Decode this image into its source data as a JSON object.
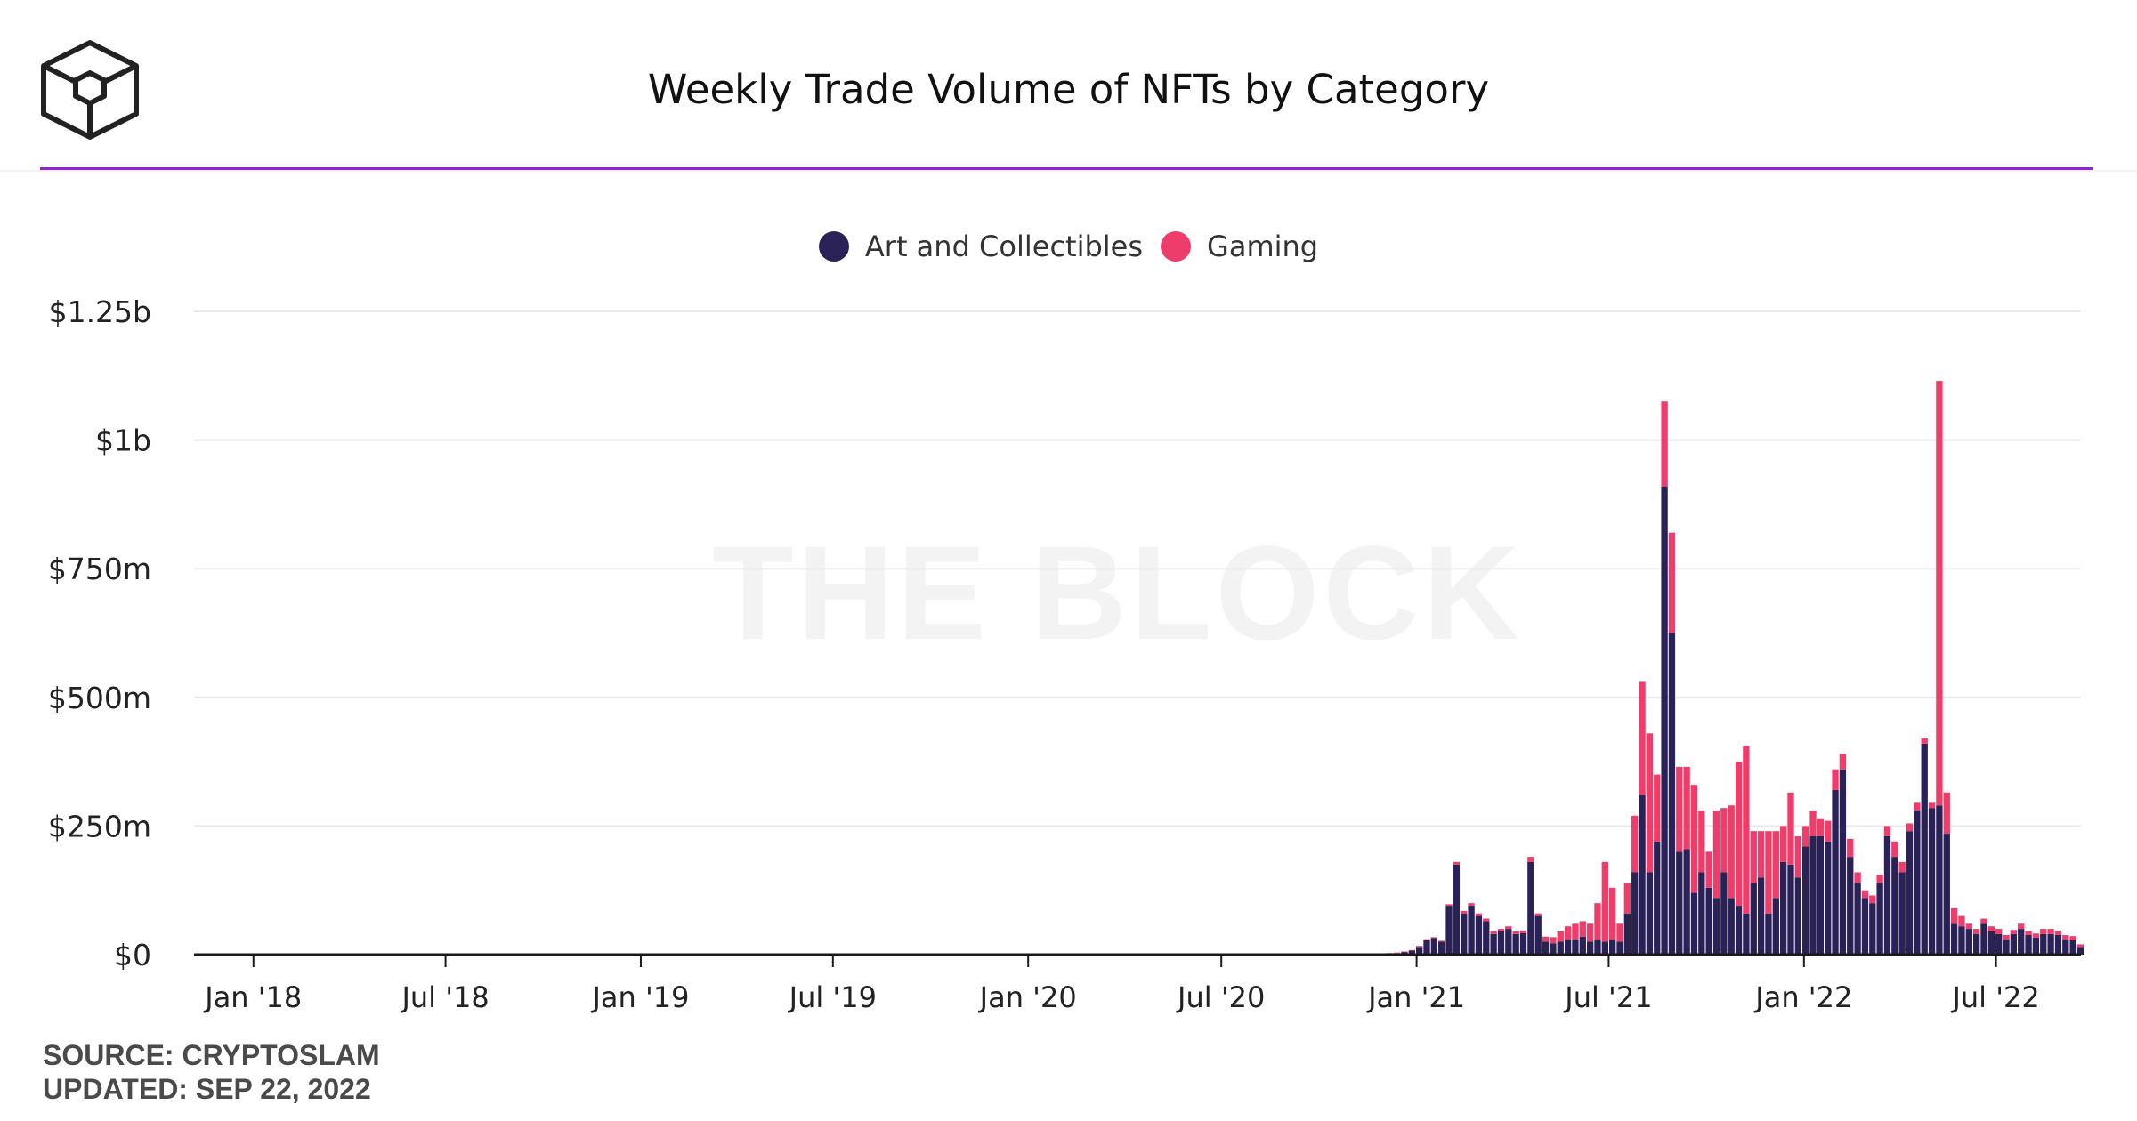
{
  "header": {
    "title": "Weekly Trade Volume of NFTs by Category",
    "logo_icon": "the-block-cube-logo-icon"
  },
  "watermark": "THE BLOCK",
  "footer": {
    "source": "SOURCE: CRYPTOSLAM",
    "updated": "UPDATED: SEP 22, 2022"
  },
  "colors": {
    "art": "#2a2257",
    "gaming": "#ef3d6b",
    "header_rule": "#8e25d6"
  },
  "chart_data": {
    "type": "bar",
    "stacked": true,
    "title": "Weekly Trade Volume of NFTs by Category",
    "legend_position": "top-center",
    "grid": true,
    "y_ticks": [
      {
        "value": 0,
        "label": "$0"
      },
      {
        "value": 250,
        "label": "$250m"
      },
      {
        "value": 500,
        "label": "$500m"
      },
      {
        "value": 750,
        "label": "$750m"
      },
      {
        "value": 1000,
        "label": "$1b"
      },
      {
        "value": 1250,
        "label": "$1.25b"
      }
    ],
    "ylim": [
      0,
      1250
    ],
    "y_unit": "USD millions",
    "x_ticks": [
      {
        "date": "2018-01-01",
        "label": "Jan '18"
      },
      {
        "date": "2018-07-01",
        "label": "Jul '18"
      },
      {
        "date": "2019-01-01",
        "label": "Jan '19"
      },
      {
        "date": "2019-07-01",
        "label": "Jul '19"
      },
      {
        "date": "2020-01-01",
        "label": "Jan '20"
      },
      {
        "date": "2020-07-01",
        "label": "Jul '20"
      },
      {
        "date": "2021-01-01",
        "label": "Jan '21"
      },
      {
        "date": "2021-07-01",
        "label": "Jul '21"
      },
      {
        "date": "2022-01-01",
        "label": "Jan '22"
      },
      {
        "date": "2022-07-01",
        "label": "Jul '22"
      }
    ],
    "xlim": [
      "2017-11-06",
      "2022-09-19"
    ],
    "series": [
      {
        "name": "Art and Collectibles",
        "color": "#2a2257",
        "values": [
          [
            "2020-12-07",
            2
          ],
          [
            "2020-12-14",
            3
          ],
          [
            "2020-12-21",
            5
          ],
          [
            "2020-12-28",
            8
          ],
          [
            "2021-01-04",
            15
          ],
          [
            "2021-01-11",
            28
          ],
          [
            "2021-01-18",
            32
          ],
          [
            "2021-01-25",
            25
          ],
          [
            "2021-02-01",
            95
          ],
          [
            "2021-02-08",
            175
          ],
          [
            "2021-02-15",
            80
          ],
          [
            "2021-02-22",
            95
          ],
          [
            "2021-03-01",
            75
          ],
          [
            "2021-03-08",
            65
          ],
          [
            "2021-03-15",
            40
          ],
          [
            "2021-03-22",
            45
          ],
          [
            "2021-03-29",
            50
          ],
          [
            "2021-04-05",
            40
          ],
          [
            "2021-04-12",
            42
          ],
          [
            "2021-04-19",
            180
          ],
          [
            "2021-04-26",
            75
          ],
          [
            "2021-05-03",
            25
          ],
          [
            "2021-05-10",
            22
          ],
          [
            "2021-05-17",
            25
          ],
          [
            "2021-05-24",
            30
          ],
          [
            "2021-05-31",
            30
          ],
          [
            "2021-06-07",
            35
          ],
          [
            "2021-06-14",
            25
          ],
          [
            "2021-06-21",
            30
          ],
          [
            "2021-06-28",
            25
          ],
          [
            "2021-07-05",
            30
          ],
          [
            "2021-07-12",
            25
          ],
          [
            "2021-07-19",
            80
          ],
          [
            "2021-07-26",
            160
          ],
          [
            "2021-08-02",
            310
          ],
          [
            "2021-08-09",
            160
          ],
          [
            "2021-08-16",
            220
          ],
          [
            "2021-08-23",
            910
          ],
          [
            "2021-08-30",
            625
          ],
          [
            "2021-09-06",
            200
          ],
          [
            "2021-09-13",
            205
          ],
          [
            "2021-09-20",
            120
          ],
          [
            "2021-09-27",
            160
          ],
          [
            "2021-10-04",
            130
          ],
          [
            "2021-10-11",
            110
          ],
          [
            "2021-10-18",
            160
          ],
          [
            "2021-10-25",
            110
          ],
          [
            "2021-11-01",
            95
          ],
          [
            "2021-11-08",
            80
          ],
          [
            "2021-11-15",
            140
          ],
          [
            "2021-11-22",
            150
          ],
          [
            "2021-11-29",
            80
          ],
          [
            "2021-12-06",
            110
          ],
          [
            "2021-12-13",
            180
          ],
          [
            "2021-12-20",
            175
          ],
          [
            "2021-12-27",
            150
          ],
          [
            "2022-01-03",
            210
          ],
          [
            "2022-01-10",
            230
          ],
          [
            "2022-01-17",
            230
          ],
          [
            "2022-01-24",
            220
          ],
          [
            "2022-01-31",
            320
          ],
          [
            "2022-02-07",
            360
          ],
          [
            "2022-02-14",
            190
          ],
          [
            "2022-02-21",
            140
          ],
          [
            "2022-02-28",
            110
          ],
          [
            "2022-03-07",
            100
          ],
          [
            "2022-03-14",
            140
          ],
          [
            "2022-03-21",
            230
          ],
          [
            "2022-03-28",
            190
          ],
          [
            "2022-04-04",
            160
          ],
          [
            "2022-04-11",
            240
          ],
          [
            "2022-04-18",
            280
          ],
          [
            "2022-04-25",
            410
          ],
          [
            "2022-05-02",
            285
          ],
          [
            "2022-05-09",
            290
          ],
          [
            "2022-05-16",
            235
          ],
          [
            "2022-05-23",
            60
          ],
          [
            "2022-05-30",
            55
          ],
          [
            "2022-06-06",
            50
          ],
          [
            "2022-06-13",
            40
          ],
          [
            "2022-06-20",
            60
          ],
          [
            "2022-06-27",
            45
          ],
          [
            "2022-07-04",
            40
          ],
          [
            "2022-07-11",
            30
          ],
          [
            "2022-07-18",
            40
          ],
          [
            "2022-07-25",
            50
          ],
          [
            "2022-08-01",
            38
          ],
          [
            "2022-08-08",
            33
          ],
          [
            "2022-08-15",
            40
          ],
          [
            "2022-08-22",
            40
          ],
          [
            "2022-08-29",
            38
          ],
          [
            "2022-09-05",
            30
          ],
          [
            "2022-09-12",
            28
          ],
          [
            "2022-09-19",
            15
          ]
        ]
      },
      {
        "name": "Gaming",
        "color": "#ef3d6b",
        "values": [
          [
            "2020-12-07",
            1
          ],
          [
            "2020-12-14",
            1
          ],
          [
            "2020-12-21",
            1
          ],
          [
            "2020-12-28",
            1
          ],
          [
            "2021-01-04",
            2
          ],
          [
            "2021-01-11",
            2
          ],
          [
            "2021-01-18",
            2
          ],
          [
            "2021-01-25",
            2
          ],
          [
            "2021-02-01",
            3
          ],
          [
            "2021-02-08",
            5
          ],
          [
            "2021-02-15",
            5
          ],
          [
            "2021-02-22",
            5
          ],
          [
            "2021-03-01",
            5
          ],
          [
            "2021-03-08",
            5
          ],
          [
            "2021-03-15",
            5
          ],
          [
            "2021-03-22",
            5
          ],
          [
            "2021-03-29",
            5
          ],
          [
            "2021-04-05",
            5
          ],
          [
            "2021-04-12",
            5
          ],
          [
            "2021-04-19",
            10
          ],
          [
            "2021-04-26",
            5
          ],
          [
            "2021-05-03",
            10
          ],
          [
            "2021-05-10",
            12
          ],
          [
            "2021-05-17",
            20
          ],
          [
            "2021-05-24",
            25
          ],
          [
            "2021-05-31",
            30
          ],
          [
            "2021-06-07",
            30
          ],
          [
            "2021-06-14",
            35
          ],
          [
            "2021-06-21",
            70
          ],
          [
            "2021-06-28",
            155
          ],
          [
            "2021-07-05",
            100
          ],
          [
            "2021-07-12",
            35
          ],
          [
            "2021-07-19",
            60
          ],
          [
            "2021-07-26",
            110
          ],
          [
            "2021-08-02",
            220
          ],
          [
            "2021-08-09",
            270
          ],
          [
            "2021-08-16",
            130
          ],
          [
            "2021-08-23",
            165
          ],
          [
            "2021-08-30",
            195
          ],
          [
            "2021-09-06",
            165
          ],
          [
            "2021-09-13",
            160
          ],
          [
            "2021-09-20",
            210
          ],
          [
            "2021-09-27",
            120
          ],
          [
            "2021-10-04",
            70
          ],
          [
            "2021-10-11",
            170
          ],
          [
            "2021-10-18",
            125
          ],
          [
            "2021-10-25",
            180
          ],
          [
            "2021-11-01",
            280
          ],
          [
            "2021-11-08",
            325
          ],
          [
            "2021-11-15",
            100
          ],
          [
            "2021-11-22",
            90
          ],
          [
            "2021-11-29",
            160
          ],
          [
            "2021-12-06",
            130
          ],
          [
            "2021-12-13",
            70
          ],
          [
            "2021-12-20",
            140
          ],
          [
            "2021-12-27",
            80
          ],
          [
            "2022-01-03",
            40
          ],
          [
            "2022-01-10",
            50
          ],
          [
            "2022-01-17",
            35
          ],
          [
            "2022-01-24",
            40
          ],
          [
            "2022-01-31",
            40
          ],
          [
            "2022-02-07",
            30
          ],
          [
            "2022-02-14",
            35
          ],
          [
            "2022-02-21",
            20
          ],
          [
            "2022-02-28",
            15
          ],
          [
            "2022-03-07",
            15
          ],
          [
            "2022-03-14",
            15
          ],
          [
            "2022-03-21",
            20
          ],
          [
            "2022-03-28",
            30
          ],
          [
            "2022-04-04",
            20
          ],
          [
            "2022-04-11",
            15
          ],
          [
            "2022-04-18",
            15
          ],
          [
            "2022-04-25",
            10
          ],
          [
            "2022-05-02",
            10
          ],
          [
            "2022-05-09",
            825
          ],
          [
            "2022-05-16",
            80
          ],
          [
            "2022-05-23",
            30
          ],
          [
            "2022-05-30",
            20
          ],
          [
            "2022-06-06",
            10
          ],
          [
            "2022-06-13",
            10
          ],
          [
            "2022-06-20",
            10
          ],
          [
            "2022-06-27",
            10
          ],
          [
            "2022-07-04",
            10
          ],
          [
            "2022-07-11",
            8
          ],
          [
            "2022-07-18",
            8
          ],
          [
            "2022-07-25",
            10
          ],
          [
            "2022-08-01",
            8
          ],
          [
            "2022-08-08",
            8
          ],
          [
            "2022-08-15",
            10
          ],
          [
            "2022-08-22",
            10
          ],
          [
            "2022-08-29",
            8
          ],
          [
            "2022-09-05",
            8
          ],
          [
            "2022-09-12",
            8
          ],
          [
            "2022-09-19",
            5
          ]
        ]
      }
    ]
  }
}
